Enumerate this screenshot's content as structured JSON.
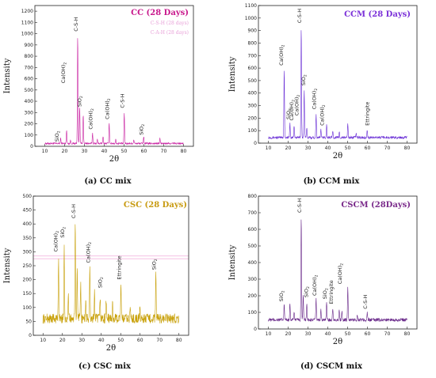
{
  "chart_data": [
    {
      "type": "line",
      "title": "CC (28 Days)",
      "caption": "(a)  CC mix",
      "xlabel": "2θ",
      "ylabel": "Intensity",
      "xlim": [
        5,
        85
      ],
      "ylim": [
        0,
        1250
      ],
      "xticks": [
        10,
        20,
        30,
        40,
        50,
        60,
        70,
        80
      ],
      "yticks": [
        0,
        100,
        200,
        300,
        400,
        500,
        600,
        700,
        800,
        900,
        1000,
        1100,
        1200
      ],
      "color": "#c81ea0",
      "title_color": "#c8188c",
      "legend_ghost": [
        "C-S-H (28 days)",
        "C-A-H (28 days)"
      ],
      "baseline": 25,
      "noise": 8,
      "peaks": [
        {
          "x": 18.0,
          "y": 70
        },
        {
          "x": 21.0,
          "y": 150
        },
        {
          "x": 23.0,
          "y": 55
        },
        {
          "x": 26.6,
          "y": 990
        },
        {
          "x": 27.6,
          "y": 360
        },
        {
          "x": 29.4,
          "y": 280
        },
        {
          "x": 34.1,
          "y": 120
        },
        {
          "x": 36.5,
          "y": 60
        },
        {
          "x": 39.4,
          "y": 90
        },
        {
          "x": 42.5,
          "y": 210
        },
        {
          "x": 45.8,
          "y": 60
        },
        {
          "x": 50.1,
          "y": 300
        },
        {
          "x": 54.9,
          "y": 60
        },
        {
          "x": 59.9,
          "y": 90
        },
        {
          "x": 68.1,
          "y": 70
        }
      ],
      "annotations": [
        {
          "label": "SiO2",
          "x": 17,
          "y": 40
        },
        {
          "label": "Ca(OH)2",
          "x": 20.2,
          "y": 560
        },
        {
          "label": "C-S-H",
          "x": 26.6,
          "y": 1020
        },
        {
          "label": "SiO2",
          "x": 28.4,
          "y": 350
        },
        {
          "label": "Ca(OH)2",
          "x": 34.1,
          "y": 150
        },
        {
          "label": "Ca(OH)2",
          "x": 42.5,
          "y": 240
        },
        {
          "label": "C-S-H",
          "x": 50.1,
          "y": 340
        },
        {
          "label": "SiO2",
          "x": 59.6,
          "y": 100
        }
      ]
    },
    {
      "type": "line",
      "title": "CCM (28 Days)",
      "caption": "(b)  CCM mix",
      "xlabel": "2θ",
      "ylabel": "Intensity",
      "xlim": [
        5,
        85
      ],
      "ylim": [
        0,
        1100
      ],
      "xticks": [
        10,
        20,
        30,
        40,
        50,
        60,
        70,
        80
      ],
      "yticks": [
        0,
        100,
        200,
        300,
        400,
        500,
        600,
        700,
        800,
        900,
        1000,
        1100
      ],
      "color": "#6a2fd6",
      "title_color": "#7a2fd8",
      "baseline": 45,
      "noise": 10,
      "peaks": [
        {
          "x": 18.0,
          "y": 590
        },
        {
          "x": 20.9,
          "y": 160
        },
        {
          "x": 23.0,
          "y": 140
        },
        {
          "x": 26.6,
          "y": 930
        },
        {
          "x": 28.1,
          "y": 430
        },
        {
          "x": 29.4,
          "y": 130
        },
        {
          "x": 34.1,
          "y": 230
        },
        {
          "x": 36.5,
          "y": 110
        },
        {
          "x": 39.4,
          "y": 150
        },
        {
          "x": 42.5,
          "y": 100
        },
        {
          "x": 45.8,
          "y": 90
        },
        {
          "x": 50.1,
          "y": 160
        },
        {
          "x": 54.3,
          "y": 80
        },
        {
          "x": 59.9,
          "y": 110
        }
      ],
      "annotations": [
        {
          "label": "Ca(OH)2",
          "x": 17.5,
          "y": 620
        },
        {
          "label": "SiO2",
          "x": 21.0,
          "y": 190
        },
        {
          "label": "Ca(OH)2",
          "x": 22.6,
          "y": 180
        },
        {
          "label": "Ca(OH)2",
          "x": 25.2,
          "y": 220
        },
        {
          "label": "C-S-H",
          "x": 26.6,
          "y": 960
        },
        {
          "label": "SiO2",
          "x": 28.6,
          "y": 460
        },
        {
          "label": "Ca(OH)2",
          "x": 34.1,
          "y": 270
        },
        {
          "label": "Ca(OH)2",
          "x": 38.0,
          "y": 140
        },
        {
          "label": "Ettringite",
          "x": 60.8,
          "y": 140
        }
      ]
    },
    {
      "type": "line",
      "title": "CSC (28 Days)",
      "caption": "(c)  CSC mix",
      "xlabel": "2θ",
      "ylabel": "Intensity",
      "xlim": [
        5,
        85
      ],
      "ylim": [
        0,
        500
      ],
      "xticks": [
        10,
        20,
        30,
        40,
        50,
        60,
        70,
        80
      ],
      "yticks": [
        0,
        50,
        100,
        150,
        200,
        250,
        300,
        350,
        400,
        450,
        500
      ],
      "color": "#c8a008",
      "title_color": "#c89a10",
      "baseline": 60,
      "noise": 18,
      "ghost_lines": [
        275,
        285
      ],
      "peaks": [
        {
          "x": 18.0,
          "y": 280
        },
        {
          "x": 20.9,
          "y": 330
        },
        {
          "x": 23.0,
          "y": 150
        },
        {
          "x": 26.6,
          "y": 410
        },
        {
          "x": 27.6,
          "y": 240
        },
        {
          "x": 29.4,
          "y": 180
        },
        {
          "x": 32.0,
          "y": 130
        },
        {
          "x": 34.1,
          "y": 240
        },
        {
          "x": 36.5,
          "y": 160
        },
        {
          "x": 39.4,
          "y": 140
        },
        {
          "x": 42.5,
          "y": 130
        },
        {
          "x": 45.8,
          "y": 110
        },
        {
          "x": 50.1,
          "y": 180
        },
        {
          "x": 54.9,
          "y": 100
        },
        {
          "x": 59.9,
          "y": 90
        },
        {
          "x": 68.1,
          "y": 220
        }
      ],
      "annotations": [
        {
          "label": "Ca(OH)2",
          "x": 17.5,
          "y": 300
        },
        {
          "label": "SiO2",
          "x": 20.9,
          "y": 350
        },
        {
          "label": "C-S-H",
          "x": 26.6,
          "y": 420
        },
        {
          "label": "Ca(OH)2",
          "x": 34.1,
          "y": 260
        },
        {
          "label": "SiO2",
          "x": 40.3,
          "y": 170
        },
        {
          "label": "Ettringite",
          "x": 50.1,
          "y": 200
        },
        {
          "label": "SiO2",
          "x": 68.1,
          "y": 235
        }
      ]
    },
    {
      "type": "line",
      "title": "CSCM (28Days)",
      "caption": "(d)  CSCM mix",
      "xlabel": "2θ",
      "ylabel": "Intensity",
      "xlim": [
        5,
        85
      ],
      "ylim": [
        0,
        800
      ],
      "xticks": [
        10,
        20,
        30,
        40,
        50,
        60,
        70,
        80
      ],
      "yticks": [
        0,
        100,
        200,
        300,
        400,
        500,
        600,
        700,
        800
      ],
      "color": "#6a2a8a",
      "title_color": "#7a2a8a",
      "baseline": 55,
      "noise": 10,
      "peaks": [
        {
          "x": 18.0,
          "y": 150
        },
        {
          "x": 20.9,
          "y": 160
        },
        {
          "x": 23.0,
          "y": 110
        },
        {
          "x": 26.6,
          "y": 680
        },
        {
          "x": 27.6,
          "y": 210
        },
        {
          "x": 29.4,
          "y": 150
        },
        {
          "x": 34.1,
          "y": 180
        },
        {
          "x": 36.5,
          "y": 120
        },
        {
          "x": 39.4,
          "y": 160
        },
        {
          "x": 42.5,
          "y": 130
        },
        {
          "x": 45.8,
          "y": 120
        },
        {
          "x": 47.1,
          "y": 110
        },
        {
          "x": 50.1,
          "y": 250
        },
        {
          "x": 54.9,
          "y": 90
        },
        {
          "x": 59.9,
          "y": 100
        }
      ],
      "annotations": [
        {
          "label": "SiO2",
          "x": 17.5,
          "y": 165
        },
        {
          "label": "C-S-H",
          "x": 26.6,
          "y": 700
        },
        {
          "label": "SiO2",
          "x": 30.0,
          "y": 190
        },
        {
          "label": "Ca(OH)2",
          "x": 34.1,
          "y": 200
        },
        {
          "label": "SiO2",
          "x": 39.4,
          "y": 180
        },
        {
          "label": "Ettringite",
          "x": 42.5,
          "y": 150
        },
        {
          "label": "Ca(OH)2",
          "x": 47.1,
          "y": 270
        },
        {
          "label": "C-S-H",
          "x": 59.9,
          "y": 120
        }
      ]
    }
  ]
}
